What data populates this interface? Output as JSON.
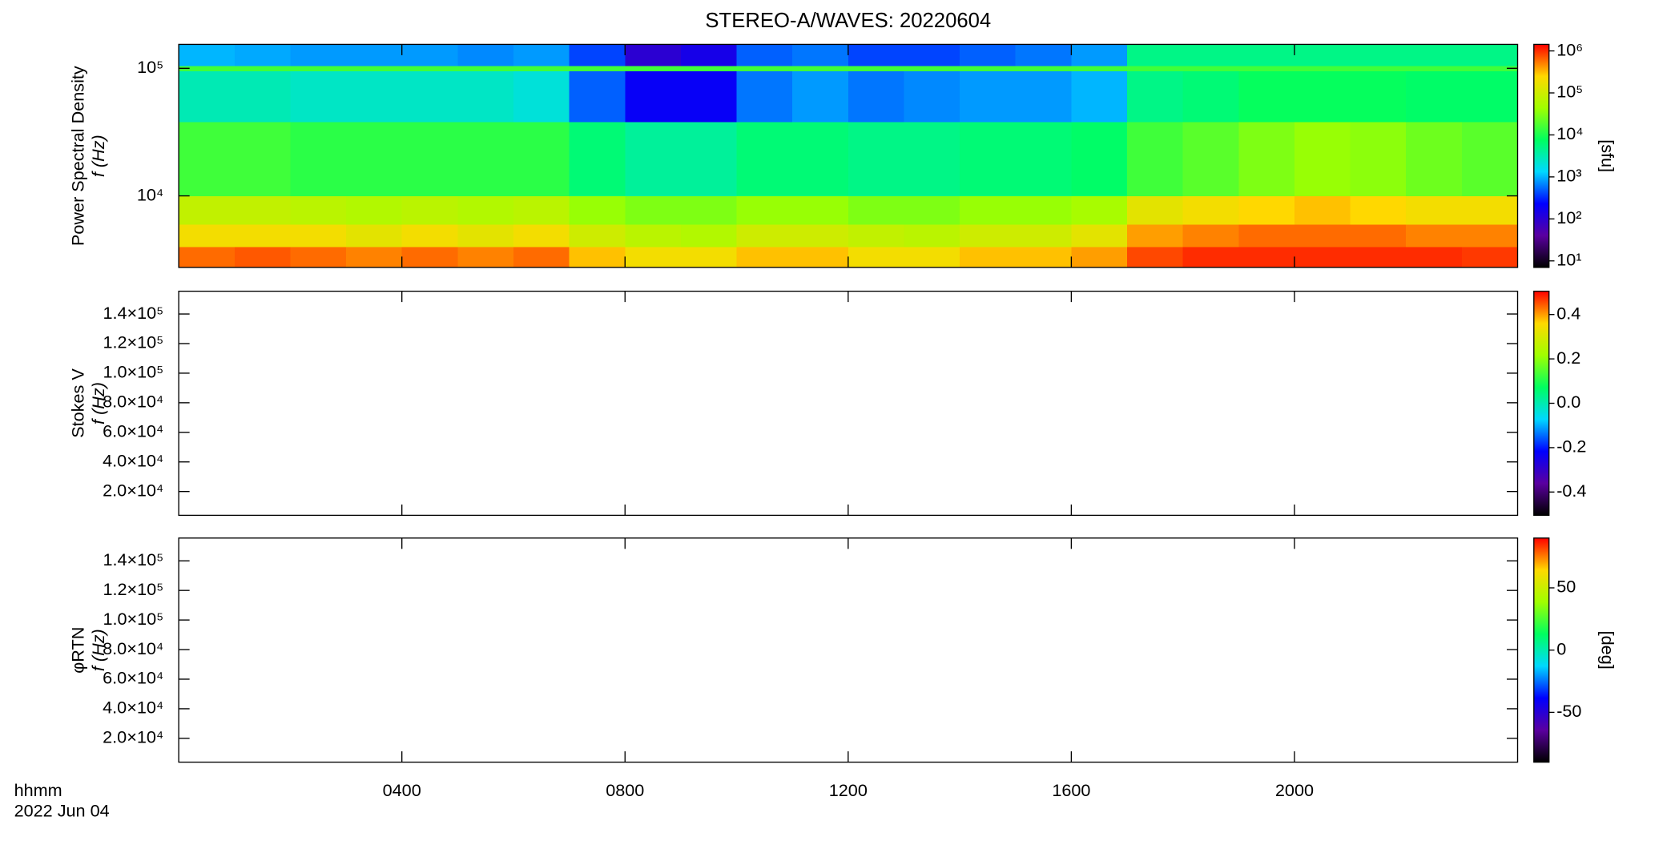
{
  "chart_data": [
    {
      "type": "heatmap",
      "title": "STEREO-A/WAVES: 20220604",
      "ylabel": [
        "Power Spectral Density",
        "f (Hz)"
      ],
      "ylog": true,
      "ylim": [
        2750,
        154000
      ],
      "yticks": [
        {
          "value": 10000,
          "label": "10⁴"
        },
        {
          "value": 100000,
          "label": "10⁵"
        }
      ],
      "x_edges": [
        0,
        1,
        2,
        3,
        4,
        5,
        6,
        7,
        8,
        9,
        10,
        11,
        12,
        13,
        14,
        15,
        16,
        17,
        18,
        19,
        20,
        21,
        22,
        23,
        24
      ],
      "y_edges": [
        2750,
        4000,
        6000,
        10000,
        38000,
        95000,
        105000,
        154000
      ],
      "z": [
        [
          600000,
          700000,
          600000,
          500000,
          600000,
          500000,
          600000,
          300000,
          200000,
          200000,
          300000,
          300000,
          200000,
          200000,
          300000,
          300000,
          400000,
          800000,
          1000000,
          1000000,
          1000000,
          1000000,
          1000000,
          900000
        ],
        [
          200000,
          200000,
          200000,
          150000,
          200000,
          150000,
          200000,
          100000,
          70000,
          60000,
          100000,
          100000,
          80000,
          70000,
          100000,
          100000,
          150000,
          400000,
          500000,
          600000,
          600000,
          600000,
          500000,
          500000
        ],
        [
          80000,
          80000,
          70000,
          60000,
          70000,
          60000,
          70000,
          40000,
          30000,
          30000,
          40000,
          40000,
          30000,
          30000,
          40000,
          40000,
          50000,
          150000,
          200000,
          250000,
          300000,
          250000,
          200000,
          200000
        ],
        [
          15000,
          15000,
          12000,
          12000,
          12000,
          12000,
          12000,
          6000,
          4000,
          4000,
          6000,
          6000,
          5000,
          5000,
          6000,
          6000,
          7000,
          15000,
          20000,
          30000,
          40000,
          35000,
          25000,
          20000
        ],
        [
          3000,
          3000,
          2500,
          2500,
          2500,
          2500,
          2000,
          500,
          200,
          200,
          600,
          800,
          600,
          700,
          800,
          800,
          1000,
          5000,
          6000,
          8000,
          8000,
          8000,
          7000,
          7000
        ],
        [
          15000,
          15000,
          15000,
          15000,
          15000,
          15000,
          15000,
          15000,
          15000,
          15000,
          15000,
          15000,
          15000,
          15000,
          15000,
          15000,
          15000,
          15000,
          15000,
          15000,
          15000,
          15000,
          15000,
          15000
        ],
        [
          1000,
          900,
          800,
          800,
          800,
          700,
          800,
          400,
          100,
          150,
          500,
          600,
          400,
          400,
          500,
          600,
          800,
          5000,
          5000,
          5000,
          5000,
          5000,
          5000,
          5000
        ]
      ],
      "zlog": true,
      "zlim": [
        7,
        1430000
      ],
      "zticks": [
        {
          "value": 10,
          "label": "10¹"
        },
        {
          "value": 100,
          "label": "10²"
        },
        {
          "value": 1000,
          "label": "10³"
        },
        {
          "value": 10000,
          "label": "10⁴"
        },
        {
          "value": 100000,
          "label": "10⁵"
        },
        {
          "value": 1000000,
          "label": "10⁶"
        }
      ],
      "zlabel": "[sfu]",
      "colorscale": [
        "#000000",
        "#5a00a0",
        "#0000ff",
        "#00d8ff",
        "#00ff60",
        "#a0ff00",
        "#ffd800",
        "#ff0000"
      ]
    },
    {
      "type": "heatmap",
      "ylabel": [
        "Stokes V",
        "f (Hz)"
      ],
      "ylim": [
        3900,
        155400
      ],
      "yticks": [
        {
          "value": 20000,
          "label": "2.0×10⁴"
        },
        {
          "value": 40000,
          "label": "4.0×10⁴"
        },
        {
          "value": 60000,
          "label": "6.0×10⁴"
        },
        {
          "value": 80000,
          "label": "8.0×10⁴"
        },
        {
          "value": 100000,
          "label": "1.0×10⁵"
        },
        {
          "value": 120000,
          "label": "1.2×10⁵"
        },
        {
          "value": 140000,
          "label": "1.4×10⁵"
        }
      ],
      "zlim": [
        -0.505,
        0.505
      ],
      "zticks": [
        -0.4,
        -0.2,
        {
          "value": 0,
          "label": "0.0"
        },
        0.2,
        0.4
      ],
      "colorscale": [
        "#000000",
        "#5a00a0",
        "#0000ff",
        "#00d8ff",
        "#00ff60",
        "#a0ff00",
        "#ffd800",
        "#ff0000"
      ]
    },
    {
      "type": "heatmap",
      "ylabel": [
        "φRTN",
        "f (Hz)"
      ],
      "ylim": [
        3900,
        155400
      ],
      "yticks": [
        {
          "value": 20000,
          "label": "2.0×10⁴"
        },
        {
          "value": 40000,
          "label": "4.0×10⁴"
        },
        {
          "value": 60000,
          "label": "6.0×10⁴"
        },
        {
          "value": 80000,
          "label": "8.0×10⁴"
        },
        {
          "value": 100000,
          "label": "1.0×10⁵"
        },
        {
          "value": 120000,
          "label": "1.2×10⁵"
        },
        {
          "value": 140000,
          "label": "1.4×10⁵"
        }
      ],
      "zlim": [
        -90,
        90
      ],
      "zticks": [
        -50,
        0,
        50
      ],
      "zlabel": "[deg]",
      "colorscale": [
        "#000000",
        "#5a00a0",
        "#0000ff",
        "#00d8ff",
        "#00ff60",
        "#a0ff00",
        "#ffd800",
        "#ff0000"
      ],
      "xlim": [
        0,
        24
      ],
      "xticks": [
        {
          "value": 4,
          "label": "0400"
        },
        {
          "value": 8,
          "label": "0800"
        },
        {
          "value": 12,
          "label": "1200"
        },
        {
          "value": 16,
          "label": "1600"
        },
        {
          "value": 20,
          "label": "2000"
        }
      ],
      "xlabel": "hhmm",
      "date": "2022 Jun 04"
    }
  ]
}
